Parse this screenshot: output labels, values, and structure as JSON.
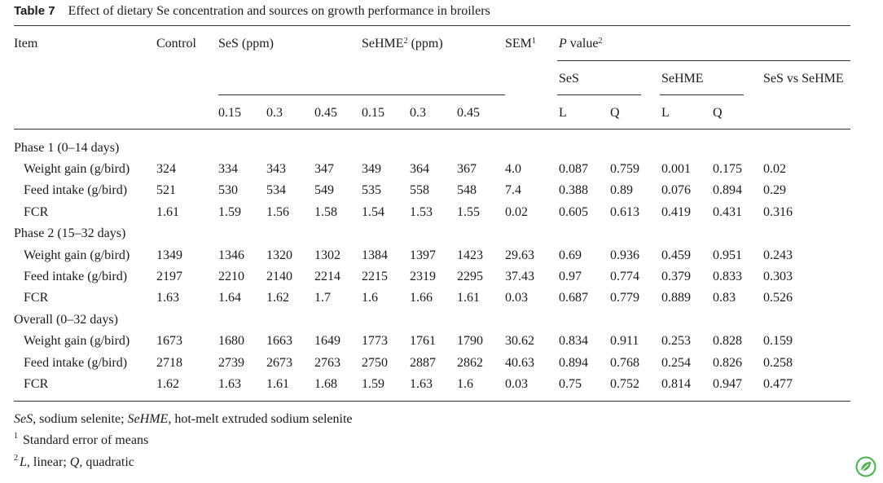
{
  "caption": {
    "label": "Table 7",
    "title": "Effect of dietary Se concentration and sources on growth performance in broilers"
  },
  "header": {
    "item": "Item",
    "control": "Control",
    "ses_ppm": "SeS (ppm)",
    "sehme_prefix": "SeHME",
    "sehme_sup": "2",
    "sehme_suffix": " (ppm)",
    "sem": "SEM",
    "sem_sup": "1",
    "pvalue_p": "P",
    "pvalue_rest": " value",
    "pvalue_sup": "2",
    "sub_ses": "SeS",
    "sub_sehme": "SeHME",
    "sub_vs": "SeS vs SeHME",
    "levels": [
      "0.15",
      "0.3",
      "0.45",
      "0.15",
      "0.3",
      "0.45"
    ],
    "lq": [
      "L",
      "Q",
      "L",
      "Q"
    ]
  },
  "sections": [
    {
      "title": "Phase 1 (0–14 days)",
      "rows": [
        {
          "item": "Weight gain (g/bird)",
          "cells": [
            "324",
            "334",
            "343",
            "347",
            "349",
            "364",
            "367",
            "4.0",
            "0.087",
            "0.759",
            "0.001",
            "0.175",
            "0.02"
          ]
        },
        {
          "item": "Feed intake (g/bird)",
          "cells": [
            "521",
            "530",
            "534",
            "549",
            "535",
            "558",
            "548",
            "7.4",
            "0.388",
            "0.89",
            "0.076",
            "0.894",
            "0.29"
          ]
        },
        {
          "item": "FCR",
          "cells": [
            "1.61",
            "1.59",
            "1.56",
            "1.58",
            "1.54",
            "1.53",
            "1.55",
            "0.02",
            "0.605",
            "0.613",
            "0.419",
            "0.431",
            "0.316"
          ]
        }
      ]
    },
    {
      "title": "Phase 2 (15–32 days)",
      "rows": [
        {
          "item": "Weight gain (g/bird)",
          "cells": [
            "1349",
            "1346",
            "1320",
            "1302",
            "1384",
            "1397",
            "1423",
            "29.63",
            "0.69",
            "0.936",
            "0.459",
            "0.951",
            "0.243"
          ]
        },
        {
          "item": "Feed intake (g/bird)",
          "cells": [
            "2197",
            "2210",
            "2140",
            "2214",
            "2215",
            "2319",
            "2295",
            "37.43",
            "0.97",
            "0.774",
            "0.379",
            "0.833",
            "0.303"
          ]
        },
        {
          "item": "FCR",
          "cells": [
            "1.63",
            "1.64",
            "1.62",
            "1.7",
            "1.6",
            "1.66",
            "1.61",
            "0.03",
            "0.687",
            "0.779",
            "0.889",
            "0.83",
            "0.526"
          ]
        }
      ]
    },
    {
      "title": "Overall (0–32 days)",
      "rows": [
        {
          "item": "Weight gain (g/bird)",
          "cells": [
            "1673",
            "1680",
            "1663",
            "1649",
            "1773",
            "1761",
            "1790",
            "30.62",
            "0.834",
            "0.911",
            "0.253",
            "0.828",
            "0.159"
          ]
        },
        {
          "item": "Feed intake (g/bird)",
          "cells": [
            "2718",
            "2739",
            "2673",
            "2763",
            "2750",
            "2887",
            "2862",
            "40.63",
            "0.894",
            "0.768",
            "0.254",
            "0.826",
            "0.258"
          ]
        },
        {
          "item": "FCR",
          "cells": [
            "1.62",
            "1.63",
            "1.61",
            "1.68",
            "1.59",
            "1.63",
            "1.6",
            "0.03",
            "0.75",
            "0.752",
            "0.814",
            "0.947",
            "0.477"
          ]
        }
      ]
    }
  ],
  "footnotes": {
    "abbr_ses": "SeS",
    "abbr_ses_text": ", sodium selenite; ",
    "abbr_sehme": "SeHME",
    "abbr_sehme_text": ", hot-melt extruded sodium selenite",
    "note1_mark": "1",
    "note1_text": " Standard error of means",
    "note2_mark": "2",
    "note2_l": "L",
    "note2_l_text": ", linear; ",
    "note2_q": "Q",
    "note2_q_text": ", quadratic"
  },
  "logo_icon": "springer-leaf-icon",
  "logo_color": "#4caf50"
}
